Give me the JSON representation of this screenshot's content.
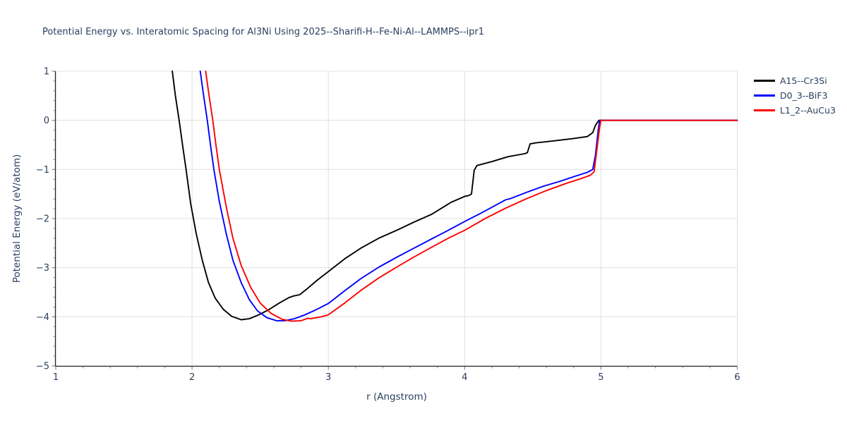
{
  "chart_data": {
    "type": "line",
    "title": "Potential Energy vs. Interatomic Spacing for Al3Ni Using 2025--Sharifi-H--Fe-Ni-Al--LAMMPS--ipr1",
    "xlabel": "r (Angstrom)",
    "ylabel": "Potential Energy (eV/atom)",
    "xlim": [
      1,
      6
    ],
    "ylim": [
      -5,
      1
    ],
    "x_ticks": [
      1,
      2,
      3,
      4,
      5,
      6
    ],
    "y_ticks": [
      1,
      0,
      -1,
      -2,
      -3,
      -4,
      -5
    ],
    "minor_tick_step": 0.2,
    "grid": true,
    "grid_color": "#e0e0e0",
    "spine_color": "#262626",
    "tick_color": "#8a8a8a",
    "text_color": "#2a3f5f",
    "legend_position": "outside-top-right",
    "series": [
      {
        "name": "A15--Cr3Si",
        "color": "#000000",
        "points": [
          [
            1.855,
            1.0
          ],
          [
            1.878,
            0.5
          ],
          [
            1.905,
            0.0
          ],
          [
            1.93,
            -0.5
          ],
          [
            1.956,
            -1.0
          ],
          [
            1.99,
            -1.7
          ],
          [
            2.03,
            -2.3
          ],
          [
            2.075,
            -2.85
          ],
          [
            2.12,
            -3.3
          ],
          [
            2.17,
            -3.62
          ],
          [
            2.23,
            -3.85
          ],
          [
            2.29,
            -3.99
          ],
          [
            2.36,
            -4.06
          ],
          [
            2.42,
            -4.04
          ],
          [
            2.49,
            -3.96
          ],
          [
            2.56,
            -3.86
          ],
          [
            2.64,
            -3.72
          ],
          [
            2.71,
            -3.61
          ],
          [
            2.74,
            -3.58
          ],
          [
            2.79,
            -3.55
          ],
          [
            2.84,
            -3.44
          ],
          [
            2.92,
            -3.25
          ],
          [
            3.0,
            -3.08
          ],
          [
            3.12,
            -2.82
          ],
          [
            3.24,
            -2.6
          ],
          [
            3.37,
            -2.4
          ],
          [
            3.5,
            -2.24
          ],
          [
            3.63,
            -2.07
          ],
          [
            3.76,
            -1.91
          ],
          [
            3.9,
            -1.67
          ],
          [
            4.0,
            -1.55
          ],
          [
            4.03,
            -1.53
          ],
          [
            4.05,
            -1.5
          ],
          [
            4.07,
            -1.02
          ],
          [
            4.09,
            -0.92
          ],
          [
            4.2,
            -0.84
          ],
          [
            4.32,
            -0.74
          ],
          [
            4.44,
            -0.68
          ],
          [
            4.46,
            -0.66
          ],
          [
            4.48,
            -0.48
          ],
          [
            4.52,
            -0.46
          ],
          [
            4.65,
            -0.42
          ],
          [
            4.8,
            -0.37
          ],
          [
            4.9,
            -0.33
          ],
          [
            4.94,
            -0.25
          ],
          [
            4.96,
            -0.1
          ],
          [
            4.985,
            0.0
          ],
          [
            6.0,
            0.0
          ]
        ]
      },
      {
        "name": "D0_3--BiF3",
        "color": "#0000ff",
        "points": [
          [
            2.06,
            1.0
          ],
          [
            2.085,
            0.5
          ],
          [
            2.112,
            0.0
          ],
          [
            2.135,
            -0.5
          ],
          [
            2.16,
            -1.0
          ],
          [
            2.2,
            -1.65
          ],
          [
            2.25,
            -2.3
          ],
          [
            2.3,
            -2.85
          ],
          [
            2.36,
            -3.3
          ],
          [
            2.42,
            -3.65
          ],
          [
            2.48,
            -3.88
          ],
          [
            2.55,
            -4.02
          ],
          [
            2.62,
            -4.08
          ],
          [
            2.68,
            -4.08
          ],
          [
            2.75,
            -4.04
          ],
          [
            2.82,
            -3.97
          ],
          [
            2.9,
            -3.87
          ],
          [
            3.0,
            -3.73
          ],
          [
            3.12,
            -3.47
          ],
          [
            3.24,
            -3.22
          ],
          [
            3.37,
            -2.99
          ],
          [
            3.5,
            -2.79
          ],
          [
            3.63,
            -2.6
          ],
          [
            3.76,
            -2.41
          ],
          [
            3.88,
            -2.24
          ],
          [
            4.0,
            -2.06
          ],
          [
            4.12,
            -1.89
          ],
          [
            4.24,
            -1.71
          ],
          [
            4.3,
            -1.62
          ],
          [
            4.34,
            -1.59
          ],
          [
            4.45,
            -1.47
          ],
          [
            4.58,
            -1.34
          ],
          [
            4.7,
            -1.24
          ],
          [
            4.82,
            -1.13
          ],
          [
            4.9,
            -1.06
          ],
          [
            4.94,
            -1.0
          ],
          [
            4.96,
            -0.7
          ],
          [
            4.98,
            -0.2
          ],
          [
            4.99,
            0.0
          ],
          [
            6.0,
            0.0
          ]
        ]
      },
      {
        "name": "L1_2--AuCu3",
        "color": "#ff0000",
        "points": [
          [
            2.1,
            1.0
          ],
          [
            2.125,
            0.5
          ],
          [
            2.152,
            0.0
          ],
          [
            2.175,
            -0.5
          ],
          [
            2.2,
            -1.0
          ],
          [
            2.25,
            -1.75
          ],
          [
            2.3,
            -2.4
          ],
          [
            2.36,
            -2.95
          ],
          [
            2.43,
            -3.4
          ],
          [
            2.5,
            -3.72
          ],
          [
            2.58,
            -3.93
          ],
          [
            2.66,
            -4.05
          ],
          [
            2.73,
            -4.09
          ],
          [
            2.8,
            -4.08
          ],
          [
            2.85,
            -4.03
          ],
          [
            2.87,
            -4.04
          ],
          [
            2.95,
            -4.0
          ],
          [
            3.0,
            -3.96
          ],
          [
            3.12,
            -3.72
          ],
          [
            3.24,
            -3.46
          ],
          [
            3.37,
            -3.21
          ],
          [
            3.5,
            -2.99
          ],
          [
            3.63,
            -2.78
          ],
          [
            3.76,
            -2.58
          ],
          [
            3.88,
            -2.4
          ],
          [
            4.0,
            -2.24
          ],
          [
            4.15,
            -2.0
          ],
          [
            4.3,
            -1.79
          ],
          [
            4.45,
            -1.6
          ],
          [
            4.6,
            -1.43
          ],
          [
            4.75,
            -1.28
          ],
          [
            4.85,
            -1.19
          ],
          [
            4.92,
            -1.12
          ],
          [
            4.95,
            -1.05
          ],
          [
            4.97,
            -0.6
          ],
          [
            4.99,
            -0.15
          ],
          [
            5.0,
            0.0
          ],
          [
            6.0,
            0.0
          ]
        ]
      }
    ]
  }
}
